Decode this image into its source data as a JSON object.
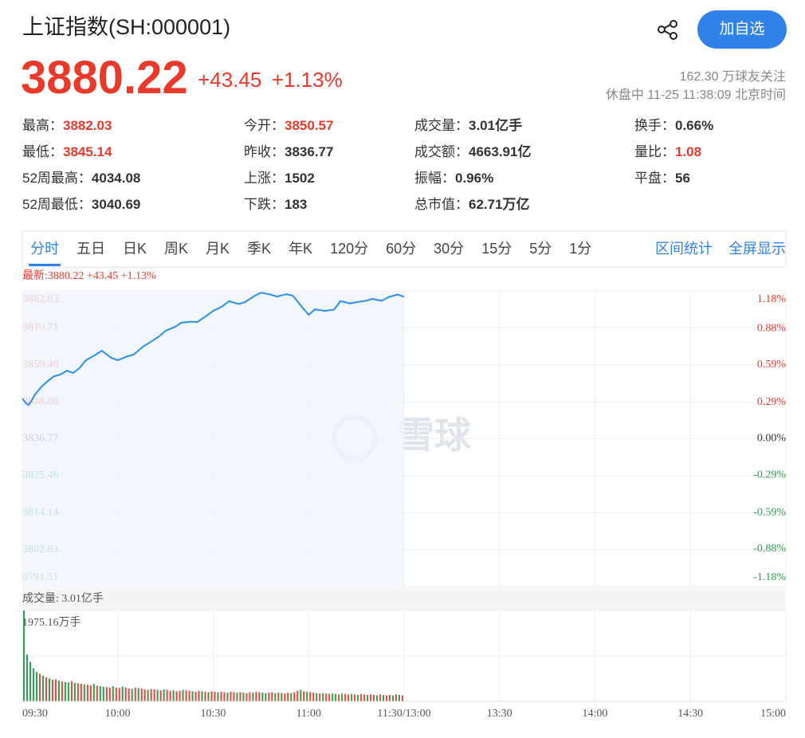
{
  "header": {
    "title": "上证指数(SH:000001)",
    "price": "3880.22",
    "change": "+43.45",
    "percent": "+1.13%",
    "followers": "162.30 万球友关注",
    "status": "休盘中 11-25 11:38:09 北京时间",
    "button": "加自选"
  },
  "stats": [
    [
      {
        "label": "最高：",
        "value": "3882.03",
        "color": "#e8392b"
      },
      {
        "label": "今开：",
        "value": "3850.57",
        "color": "#e8392b"
      },
      {
        "label": "成交量：",
        "value": "3.01亿手",
        "color": "#333"
      },
      {
        "label": "换手：",
        "value": "0.66%",
        "color": "#333"
      }
    ],
    [
      {
        "label": "最低：",
        "value": "3845.14",
        "color": "#e8392b"
      },
      {
        "label": "昨收：",
        "value": "3836.77",
        "color": "#333"
      },
      {
        "label": "成交额：",
        "value": "4663.91亿",
        "color": "#333"
      },
      {
        "label": "量比：",
        "value": "1.08",
        "color": "#e8392b"
      }
    ],
    [
      {
        "label": "52周最高：",
        "value": "4034.08",
        "color": "#333"
      },
      {
        "label": "上涨：",
        "value": "1502",
        "color": "#333"
      },
      {
        "label": "振幅：",
        "value": "0.96%",
        "color": "#333"
      },
      {
        "label": "平盘：",
        "value": "56",
        "color": "#333"
      }
    ],
    [
      {
        "label": "52周最低：",
        "value": "3040.69",
        "color": "#333"
      },
      {
        "label": "下跌：",
        "value": "183",
        "color": "#333"
      },
      {
        "label": "总市值：",
        "value": "62.71万亿",
        "color": "#333"
      }
    ]
  ],
  "tabs": [
    "分时",
    "五日",
    "日K",
    "周K",
    "月K",
    "季K",
    "年K",
    "120分",
    "60分",
    "30分",
    "15分",
    "5分",
    "1分"
  ],
  "links": [
    "区间统计",
    "全屏显示"
  ],
  "chart_data": {
    "type": "line",
    "latest": "最新:3880.22 +43.45 +1.13%",
    "watermark": "雪球",
    "volume_title": "成交量: 3.01亿手",
    "x": [
      0,
      1,
      2,
      3,
      4,
      5,
      6,
      8,
      10,
      12,
      14,
      16,
      18,
      20,
      22,
      25,
      28,
      30,
      33,
      35,
      38,
      40,
      43,
      45,
      48,
      50,
      53,
      55,
      58,
      60,
      63,
      65,
      68,
      70,
      73,
      75,
      78,
      80,
      83,
      85,
      88,
      90,
      92,
      95,
      98,
      100,
      103,
      105,
      108,
      110,
      113,
      115,
      118,
      120
    ],
    "series": [
      {
        "color": "#2f8ee8",
        "values": [
          3849.1,
          3847.8,
          3847.1,
          3848.6,
          3850.3,
          3851.5,
          3852.7,
          3854.4,
          3855.9,
          3856.4,
          3857.6,
          3856.9,
          3858.4,
          3860.8,
          3861.9,
          3863.7,
          3861.5,
          3860.8,
          3862.0,
          3862.5,
          3865.0,
          3866.2,
          3868.1,
          3869.8,
          3871.0,
          3872.3,
          3872.6,
          3872.5,
          3874.5,
          3875.9,
          3877.4,
          3878.9,
          3878.0,
          3878.6,
          3880.5,
          3881.5,
          3880.9,
          3880.3,
          3881.0,
          3880.6,
          3877.0,
          3874.7,
          3876.4,
          3875.9,
          3876.3,
          3878.9,
          3878.2,
          3878.6,
          3879.0,
          3879.6,
          3879.0,
          3880.1,
          3880.9,
          3880.22
        ]
      }
    ],
    "xlim": [
      0,
      240
    ],
    "xticks": [
      {
        "value": 0,
        "label": "09:30"
      },
      {
        "value": 30,
        "label": "10:00"
      },
      {
        "value": 60,
        "label": "10:30"
      },
      {
        "value": 90,
        "label": "11:00"
      },
      {
        "value": 120,
        "label": "11:30/13:00"
      },
      {
        "value": 150,
        "label": "13:30"
      },
      {
        "value": 180,
        "label": "14:00"
      },
      {
        "value": 210,
        "label": "14:30"
      },
      {
        "value": 240,
        "label": "15:00"
      }
    ],
    "ylim": [
      3791.51,
      3882.03
    ],
    "yticks": [
      {
        "value": 3882.03,
        "label": "3882.03"
      },
      {
        "value": 3870.71,
        "label": "3870.71"
      },
      {
        "value": 3859.4,
        "label": "3859.40"
      },
      {
        "value": 3848.08,
        "label": "3848.08"
      },
      {
        "value": 3836.77,
        "label": "3836.77"
      },
      {
        "value": 3825.46,
        "label": "3825.46"
      },
      {
        "value": 3814.14,
        "label": "3814.14"
      },
      {
        "value": 3802.83,
        "label": "3802.83"
      },
      {
        "value": 3791.51,
        "label": "3791.51"
      }
    ],
    "y2lim": [
      -1.18,
      1.18
    ],
    "y2ticks": [
      {
        "value": 1.18,
        "label": "1.18%"
      },
      {
        "value": 0.88,
        "label": "0.88%"
      },
      {
        "value": 0.59,
        "label": "0.59%"
      },
      {
        "value": 0.29,
        "label": "0.29%"
      },
      {
        "value": 0,
        "label": "0.00%"
      },
      {
        "value": -0.29,
        "label": "-0.29%"
      },
      {
        "value": -0.59,
        "label": "-0.59%"
      },
      {
        "value": -0.88,
        "label": "-0.88%"
      },
      {
        "value": -1.18,
        "label": "-1.18%"
      }
    ],
    "volume": {
      "ylim": [
        0,
        1975.16
      ],
      "yticks": [
        {
          "value": 1975.16,
          "label": "1975.16万手"
        }
      ],
      "values": [
        1975.16,
        1020,
        860,
        720,
        640,
        600,
        560,
        520,
        500,
        470,
        480,
        450,
        430,
        420,
        410,
        440,
        400,
        390,
        380,
        370,
        360,
        350,
        380,
        340,
        330,
        320,
        310,
        300,
        330,
        300,
        290,
        320,
        300,
        280,
        270,
        300,
        290,
        280,
        260,
        250,
        270,
        260,
        250,
        240,
        260,
        250,
        230,
        240,
        220,
        230,
        250,
        240,
        230,
        220,
        210,
        230,
        220,
        210,
        200,
        220,
        210,
        200,
        210,
        200,
        190,
        210,
        200,
        190,
        200,
        190,
        180,
        200,
        190,
        210,
        200,
        190,
        180,
        190,
        200,
        180,
        190,
        180,
        170,
        190,
        180,
        200,
        230,
        250,
        220,
        210,
        200,
        190,
        180,
        170,
        180,
        170,
        160,
        170,
        160,
        150,
        170,
        160,
        150,
        160,
        150,
        140,
        160,
        150,
        140,
        150,
        140,
        130,
        150,
        140,
        130,
        140,
        130,
        150,
        140,
        130
      ],
      "colors": [
        "#27a24c",
        "#27a24c",
        "#27a24c",
        "#27a24c",
        "#27a24c",
        "#e8453c",
        "#27a24c",
        "#e8453c",
        "#27a24c",
        "#e8453c",
        "#e8453c",
        "#27a24c",
        "#e8453c",
        "#27a24c",
        "#27a24c",
        "#e8453c",
        "#27a24c",
        "#e8453c",
        "#e8453c",
        "#27a24c",
        "#e8453c",
        "#e8453c",
        "#27a24c",
        "#e8453c",
        "#27a24c",
        "#27a24c",
        "#e8453c",
        "#e8453c",
        "#27a24c",
        "#e8453c",
        "#e8453c",
        "#27a24c",
        "#e8453c",
        "#e8453c",
        "#27a24c",
        "#e8453c",
        "#27a24c",
        "#e8453c",
        "#e8453c",
        "#27a24c",
        "#e8453c",
        "#e8453c",
        "#27a24c",
        "#e8453c",
        "#27a24c",
        "#e8453c",
        "#e8453c",
        "#27a24c",
        "#e8453c",
        "#e8453c",
        "#27a24c",
        "#e8453c",
        "#e8453c",
        "#27a24c",
        "#e8453c",
        "#e8453c",
        "#27a24c",
        "#e8453c",
        "#27a24c",
        "#e8453c",
        "#e8453c",
        "#27a24c",
        "#e8453c",
        "#e8453c",
        "#27a24c",
        "#e8453c",
        "#e8453c",
        "#27a24c",
        "#e8453c",
        "#27a24c",
        "#e8453c",
        "#e8453c",
        "#27a24c",
        "#e8453c",
        "#e8453c",
        "#27a24c",
        "#27a24c",
        "#e8453c",
        "#e8453c",
        "#27a24c",
        "#e8453c",
        "#27a24c",
        "#e8453c",
        "#e8453c",
        "#27a24c",
        "#e8453c",
        "#e8453c",
        "#27a24c",
        "#e8453c",
        "#27a24c",
        "#e8453c",
        "#e8453c",
        "#27a24c",
        "#e8453c",
        "#27a24c",
        "#e8453c",
        "#e8453c",
        "#27a24c",
        "#27a24c",
        "#e8453c",
        "#27a24c",
        "#e8453c",
        "#e8453c",
        "#27a24c",
        "#e8453c",
        "#27a24c",
        "#e8453c",
        "#e8453c",
        "#27a24c",
        "#e8453c",
        "#e8453c",
        "#27a24c",
        "#e8453c",
        "#27a24c",
        "#e8453c",
        "#e8453c",
        "#27a24c",
        "#e8453c",
        "#27a24c",
        "#e8453c"
      ]
    }
  }
}
